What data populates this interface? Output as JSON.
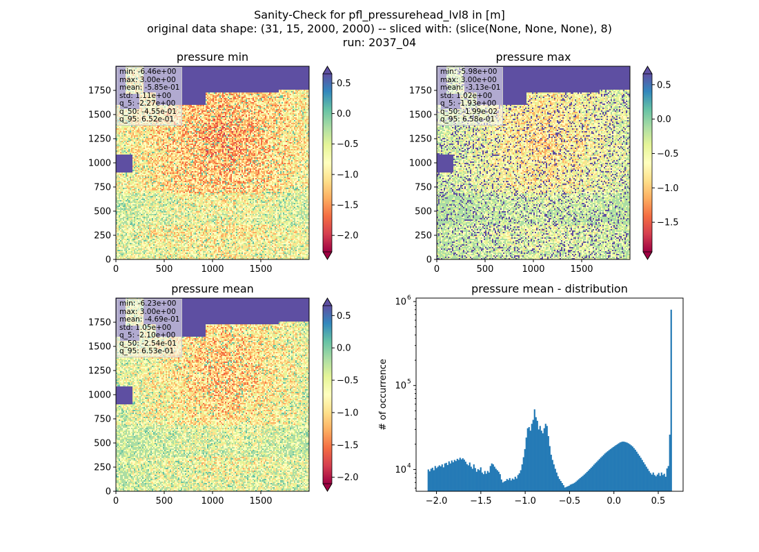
{
  "suptitle": [
    "Sanity-Check for pfl_pressurehead_lvl8 in [m]",
    "original data shape: (31, 15, 2000, 2000) -- sliced with: (slice(None, None, None), 8)",
    "run: 2037_04"
  ],
  "colors": {
    "sea": "#5e4fa2",
    "histogram": "#1f77b4",
    "spectral": [
      "#9e0142",
      "#d53e4f",
      "#f46d43",
      "#fdae61",
      "#fee08b",
      "#ffffbf",
      "#e6f598",
      "#abdda4",
      "#66c2a5",
      "#3288bd",
      "#5e4fa2"
    ]
  },
  "chart_data": [
    {
      "type": "heatmap",
      "title": "pressure min",
      "x_ticks": [
        "0",
        "500",
        "1000",
        "1500"
      ],
      "y_ticks": [
        "0",
        "250",
        "500",
        "750",
        "1000",
        "1250",
        "1500",
        "1750"
      ],
      "xlim": [
        0,
        2000
      ],
      "ylim": [
        0,
        2000
      ],
      "colormap": "Spectral",
      "colorbar": {
        "vmin": -2.27,
        "vmax": 0.652,
        "extend": "both",
        "ticks": [
          0.5,
          0.0,
          -0.5,
          -1.0,
          -1.5,
          -2.0
        ],
        "tick_labels": [
          "0.5",
          "0.0",
          "−0.5",
          "−1.0",
          "−1.5",
          "−2.0"
        ]
      },
      "stats": [
        "min: -6.46e+00",
        "max: 3.00e+00",
        "mean: -5.85e-01",
        "std: 1.11e+00",
        "q_5: -2.27e+00",
        "q_50: -4.55e-01",
        "q_95: 6.52e-01"
      ]
    },
    {
      "type": "heatmap",
      "title": "pressure max",
      "x_ticks": [
        "0",
        "500",
        "1000",
        "1500"
      ],
      "y_ticks": [
        "0",
        "250",
        "500",
        "750",
        "1000",
        "1250",
        "1500",
        "1750"
      ],
      "xlim": [
        0,
        2000
      ],
      "ylim": [
        0,
        2000
      ],
      "colormap": "Spectral",
      "colorbar": {
        "vmin": -1.93,
        "vmax": 0.658,
        "extend": "both",
        "ticks": [
          0.5,
          0.0,
          -0.5,
          -1.0,
          -1.5
        ],
        "tick_labels": [
          "0.5",
          "0.0",
          "−0.5",
          "−1.0",
          "−1.5"
        ]
      },
      "stats": [
        "min: -5.98e+00",
        "max: 3.00e+00",
        "mean: -3.13e-01",
        "std: 1.02e+00",
        "q_5: -1.93e+00",
        "q_50: -1.99e-02",
        "q_95: 6.58e-01"
      ]
    },
    {
      "type": "heatmap",
      "title": "pressure mean",
      "x_ticks": [
        "0",
        "500",
        "1000",
        "1500"
      ],
      "y_ticks": [
        "0",
        "250",
        "500",
        "750",
        "1000",
        "1250",
        "1500",
        "1750"
      ],
      "xlim": [
        0,
        2000
      ],
      "ylim": [
        0,
        2000
      ],
      "colormap": "Spectral",
      "colorbar": {
        "vmin": -2.1,
        "vmax": 0.653,
        "extend": "both",
        "ticks": [
          0.5,
          0.0,
          -0.5,
          -1.0,
          -1.5,
          -2.0
        ],
        "tick_labels": [
          "0.5",
          "0.0",
          "−0.5",
          "−1.0",
          "−1.5",
          "−2.0"
        ]
      },
      "stats": [
        "min: -6.23e+00",
        "max: 3.00e+00",
        "mean: -4.69e-01",
        "std: 1.05e+00",
        "q_5: -2.10e+00",
        "q_50: -2.54e-01",
        "q_95: 6.53e-01"
      ]
    },
    {
      "type": "bar",
      "title": "pressure mean - distribution",
      "ylabel": "# of occurrence",
      "xlabel": "",
      "y_scale": "log",
      "xlim": [
        -2.23,
        0.78
      ],
      "ylim": [
        5500,
        1100000
      ],
      "x_ticks": [
        -2.0,
        -1.5,
        -1.0,
        -0.5,
        0.0,
        0.5
      ],
      "x_tick_labels": [
        "−2.0",
        "−1.5",
        "−1.0",
        "−0.5",
        "0.0",
        "0.5"
      ],
      "y_ticks": [
        10000,
        100000,
        1000000
      ],
      "y_tick_labels": [
        "10",
        "10",
        "10"
      ],
      "y_tick_exponents": [
        "4",
        "5",
        "6"
      ],
      "bin_range": [
        -2.1,
        0.653
      ],
      "counts": [
        10000,
        9500,
        10200,
        10500,
        9800,
        11000,
        10400,
        10800,
        11200,
        10900,
        11500,
        10600,
        11800,
        12000,
        11300,
        12500,
        11800,
        12800,
        12200,
        13000,
        12600,
        13400,
        13000,
        13800,
        13200,
        13600,
        13100,
        12400,
        11600,
        11200,
        12100,
        10800,
        10200,
        11500,
        10400,
        9400,
        10100,
        9800,
        10600,
        9200,
        8800,
        9600,
        8900,
        9600,
        9200,
        11000,
        11800,
        11500,
        10800,
        10200,
        9800,
        9400,
        8800,
        7600,
        7000,
        7200,
        7300,
        7700,
        7500,
        7900,
        7400,
        7800,
        7600,
        8200,
        7800,
        8600,
        9000,
        9800,
        11500,
        14000,
        17500,
        24000,
        31000,
        32000,
        29000,
        35000,
        39000,
        52000,
        42000,
        38000,
        30000,
        33000,
        29000,
        27000,
        31000,
        35000,
        33000,
        25000,
        19000,
        15000,
        13000,
        11500,
        10200,
        9200,
        8300,
        7700,
        7300,
        6900,
        6500,
        6100,
        6200,
        6300,
        6400,
        6600,
        6700,
        6800,
        6950,
        7150,
        7400,
        7650,
        7900,
        8150,
        8400,
        8700,
        9000,
        9350,
        9700,
        10100,
        10500,
        10900,
        11400,
        11850,
        12300,
        12800,
        13300,
        13850,
        14350,
        14900,
        15500,
        16000,
        16500,
        17000,
        17500,
        18000,
        18500,
        19000,
        19500,
        20000,
        20500,
        21000,
        21300,
        21500,
        21400,
        21200,
        20900,
        20500,
        20000,
        19400,
        18800,
        18000,
        17200,
        16300,
        15400,
        14600,
        13800,
        13000,
        12200,
        11500,
        10800,
        10200,
        9600,
        9100,
        8700,
        9200,
        8600,
        8300,
        8700,
        9100,
        8400,
        9200,
        8600,
        8900,
        8200,
        10300,
        11000,
        26000,
        800000
      ]
    }
  ]
}
